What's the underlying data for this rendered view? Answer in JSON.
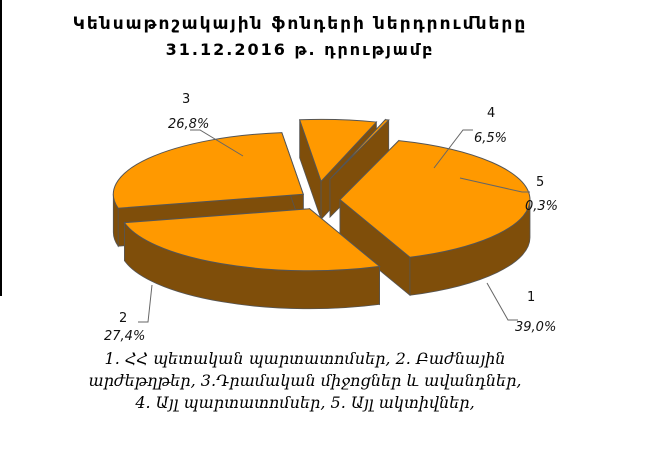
{
  "chart_data": {
    "type": "pie",
    "title": "Կենսաթոշակային ֆոնդերի ներդրումները",
    "subtitle": "31.12.2016 թ. դրությամբ",
    "slices": [
      {
        "label": "1",
        "pct_text": "39,0%",
        "value": 39.0
      },
      {
        "label": "2",
        "pct_text": "27,4%",
        "value": 27.4
      },
      {
        "label": "3",
        "pct_text": "26,8%",
        "value": 26.8
      },
      {
        "label": "4",
        "pct_text": "6,5%",
        "value": 6.5
      },
      {
        "label": "5",
        "pct_text": "0,3%",
        "value": 0.3
      }
    ],
    "colors": {
      "top": "#ff9900",
      "side": "#7f4e0a",
      "edge": "#555555"
    },
    "legend_lines": [
      "1. ՀՀ պետական պարտատոմսեր, 2. Բաժնային",
      "արժեթղթեր, 3.Դրամական միջոցներ և ավանդներ,",
      "4. Այլ պարտատոմսեր, 5. Այլ ակտիվներ,"
    ]
  }
}
